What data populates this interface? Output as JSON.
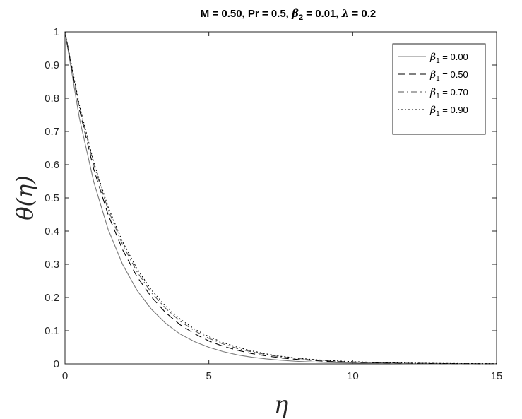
{
  "chart_data": {
    "type": "line",
    "title": "M = 0.50, Pr = 0.5, β₂ = 0.01, λ = 0.2",
    "title_parts": {
      "prefix": "M = 0.50, Pr = 0.5, ",
      "beta_symbol": "β",
      "beta_sub": "2",
      "middle": " = 0.01, ",
      "lambda_symbol": "λ",
      "suffix": " = 0.2"
    },
    "xlabel": "η",
    "ylabel": "θ(η)",
    "xlim": [
      0,
      15
    ],
    "ylim": [
      0,
      1
    ],
    "xticks": [
      0,
      5,
      10,
      15
    ],
    "yticks": [
      0,
      0.1,
      0.2,
      0.3,
      0.4,
      0.5,
      0.6,
      0.7,
      0.8,
      0.9,
      1
    ],
    "grid": false,
    "legend_position": "top-right",
    "x": [
      0,
      0.5,
      1,
      1.5,
      2,
      2.5,
      3,
      3.5,
      4,
      4.5,
      5,
      5.5,
      6,
      6.5,
      7,
      7.5,
      8,
      8.5,
      9,
      9.5,
      10,
      11,
      12,
      13,
      14,
      15
    ],
    "series": [
      {
        "name": "β₁ = 0.00",
        "legend_symbol": "β",
        "legend_sub": "1",
        "legend_value": " = 0.00",
        "line_style": "solid",
        "color": "#7a7a7a",
        "values": [
          1.0,
          0.74,
          0.548,
          0.405,
          0.3,
          0.222,
          0.165,
          0.122,
          0.09,
          0.067,
          0.05,
          0.037,
          0.027,
          0.02,
          0.015,
          0.011,
          0.008,
          0.006,
          0.0045,
          0.0033,
          0.0025,
          0.0014,
          0.0007,
          0.0004,
          0.0002,
          0.0001
        ]
      },
      {
        "name": "β₁ = 0.50",
        "legend_symbol": "β",
        "legend_sub": "1",
        "legend_value": " = 0.50",
        "line_style": "dashed",
        "color": "#000000",
        "values": [
          1.0,
          0.766,
          0.586,
          0.449,
          0.344,
          0.263,
          0.202,
          0.154,
          0.118,
          0.091,
          0.069,
          0.053,
          0.041,
          0.031,
          0.024,
          0.018,
          0.014,
          0.011,
          0.008,
          0.0063,
          0.0048,
          0.0028,
          0.0017,
          0.001,
          0.0006,
          0.0003
        ]
      },
      {
        "name": "β₁ = 0.70",
        "legend_symbol": "β",
        "legend_sub": "1",
        "legend_value": " = 0.70",
        "line_style": "dash-dot",
        "color": "#555555",
        "values": [
          1.0,
          0.774,
          0.6,
          0.464,
          0.359,
          0.278,
          0.215,
          0.167,
          0.129,
          0.1,
          0.077,
          0.06,
          0.046,
          0.036,
          0.028,
          0.021,
          0.017,
          0.013,
          0.01,
          0.0077,
          0.006,
          0.0036,
          0.0021,
          0.0013,
          0.0008,
          0.0005
        ]
      },
      {
        "name": "β₁ = 0.90",
        "legend_symbol": "β",
        "legend_sub": "1",
        "legend_value": " = 0.90",
        "line_style": "dotted",
        "color": "#000000",
        "values": [
          1.0,
          0.779,
          0.607,
          0.472,
          0.368,
          0.287,
          0.223,
          0.174,
          0.135,
          0.105,
          0.082,
          0.064,
          0.05,
          0.039,
          0.03,
          0.023,
          0.018,
          0.014,
          0.011,
          0.0087,
          0.0067,
          0.0041,
          0.0025,
          0.0015,
          0.0009,
          0.0005
        ]
      }
    ]
  }
}
